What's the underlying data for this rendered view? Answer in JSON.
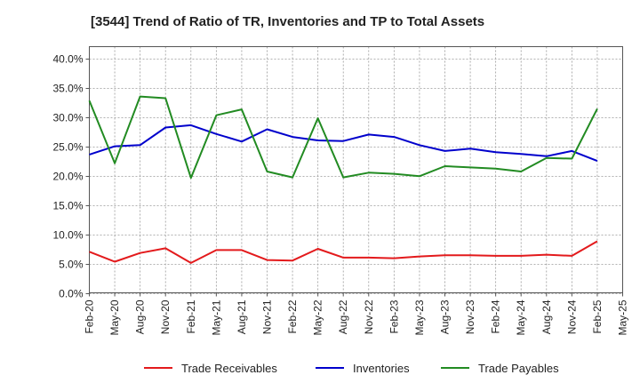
{
  "chart_data": {
    "type": "line",
    "title": "[3544]  Trend of Ratio of TR, Inventories and TP to Total Assets",
    "xlabel": "",
    "ylabel": "",
    "x_tick_labels": [
      "Feb-20",
      "May-20",
      "Aug-20",
      "Nov-20",
      "Feb-21",
      "May-21",
      "Aug-21",
      "Nov-21",
      "Feb-22",
      "May-22",
      "Aug-22",
      "Nov-22",
      "Feb-23",
      "May-23",
      "Aug-23",
      "Nov-23",
      "Feb-24",
      "May-24",
      "Aug-24",
      "Nov-24",
      "Feb-25",
      "May-25"
    ],
    "categories": [
      "Feb-20",
      "May-20",
      "Aug-20",
      "Nov-20",
      "Feb-21",
      "May-21",
      "Aug-21",
      "Nov-21",
      "Feb-22",
      "May-22",
      "Aug-22",
      "Nov-22",
      "Feb-23",
      "May-23",
      "Aug-23",
      "Nov-23",
      "Feb-24",
      "May-24",
      "Aug-24",
      "Nov-24",
      "Feb-25"
    ],
    "ylim": [
      0,
      42
    ],
    "y_ticks": [
      0,
      5,
      10,
      15,
      20,
      25,
      30,
      35,
      40
    ],
    "y_tick_labels": [
      "0.0%",
      "5.0%",
      "10.0%",
      "15.0%",
      "20.0%",
      "25.0%",
      "30.0%",
      "35.0%",
      "40.0%"
    ],
    "grid": true,
    "legend_position": "bottom",
    "series": [
      {
        "name": "Trade Receivables",
        "color": "#e31a1c",
        "values": [
          7.0,
          5.3,
          6.8,
          7.6,
          5.1,
          7.3,
          7.3,
          5.6,
          5.5,
          7.5,
          6.0,
          6.0,
          5.9,
          6.2,
          6.4,
          6.4,
          6.3,
          6.3,
          6.5,
          6.3,
          8.8
        ]
      },
      {
        "name": "Inventories",
        "color": "#0000cc",
        "values": [
          23.6,
          25.0,
          25.2,
          28.2,
          28.6,
          27.1,
          25.8,
          27.9,
          26.6,
          26.0,
          25.9,
          27.0,
          26.6,
          25.2,
          24.2,
          24.6,
          24.0,
          23.7,
          23.3,
          24.2,
          22.5
        ]
      },
      {
        "name": "Trade Payables",
        "color": "#228b22",
        "values": [
          32.8,
          22.1,
          33.5,
          33.2,
          19.6,
          30.3,
          31.3,
          20.7,
          19.7,
          29.8,
          19.7,
          20.5,
          20.3,
          19.9,
          21.6,
          21.4,
          21.2,
          20.7,
          23.0,
          22.9,
          31.4
        ]
      }
    ]
  }
}
